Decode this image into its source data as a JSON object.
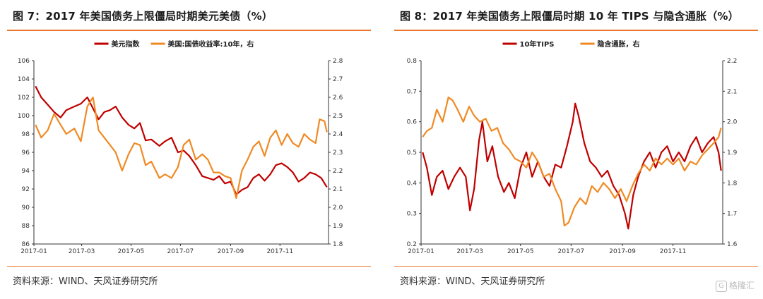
{
  "colors": {
    "dark_red": "#C00000",
    "orange": "#F08A24",
    "accent": "#E9782E"
  },
  "watermark": {
    "icon": "gelonghui-logo-icon",
    "text": "格隆汇"
  },
  "panels": [
    {
      "title": "图 7：2017 年美国债务上限僵局时期美元美债（%）",
      "source": "资料来源：WIND、天风证券研究所"
    },
    {
      "title": "图 8：2017 年美国债务上限僵局时期 10 年 TIPS 与隐含通胀（%）",
      "source": "资料来源：WIND、天风证券研究所"
    }
  ],
  "chart_data": [
    {
      "type": "line",
      "title": "",
      "x_ticks": [
        "2017-01",
        "2017-03",
        "2017-05",
        "2017-07",
        "2017-09",
        "2017-11"
      ],
      "x_range": [
        "2017-01-01",
        "2017-12-31"
      ],
      "y_left": {
        "range": [
          86,
          106
        ],
        "ticks": [
          86,
          88,
          90,
          92,
          94,
          96,
          98,
          100,
          102,
          104,
          106
        ]
      },
      "y_right": {
        "range": [
          1.8,
          2.8
        ],
        "ticks": [
          1.8,
          1.9,
          2.0,
          2.1,
          2.2,
          2.3,
          2.4,
          2.5,
          2.6,
          2.7,
          2.8
        ]
      },
      "legend_position": "top",
      "series": [
        {
          "name": "美元指数",
          "axis": "left",
          "color": "#C00000",
          "points": [
            [
              "2017-01-03",
              103.2
            ],
            [
              "2017-01-10",
              102.0
            ],
            [
              "2017-01-18",
              101.2
            ],
            [
              "2017-01-26",
              100.4
            ],
            [
              "2017-02-03",
              99.8
            ],
            [
              "2017-02-10",
              100.6
            ],
            [
              "2017-02-20",
              101.0
            ],
            [
              "2017-02-28",
              101.3
            ],
            [
              "2017-03-08",
              102.0
            ],
            [
              "2017-03-15",
              100.8
            ],
            [
              "2017-03-22",
              99.6
            ],
            [
              "2017-03-29",
              100.4
            ],
            [
              "2017-04-05",
              100.6
            ],
            [
              "2017-04-12",
              101.0
            ],
            [
              "2017-04-20",
              99.8
            ],
            [
              "2017-04-28",
              99.0
            ],
            [
              "2017-05-05",
              98.6
            ],
            [
              "2017-05-12",
              99.2
            ],
            [
              "2017-05-19",
              97.3
            ],
            [
              "2017-05-26",
              97.4
            ],
            [
              "2017-06-05",
              96.7
            ],
            [
              "2017-06-12",
              97.2
            ],
            [
              "2017-06-20",
              97.6
            ],
            [
              "2017-06-28",
              96.0
            ],
            [
              "2017-07-05",
              96.2
            ],
            [
              "2017-07-12",
              95.6
            ],
            [
              "2017-07-20",
              94.6
            ],
            [
              "2017-07-28",
              93.4
            ],
            [
              "2017-08-04",
              93.2
            ],
            [
              "2017-08-11",
              93.0
            ],
            [
              "2017-08-18",
              93.4
            ],
            [
              "2017-08-25",
              92.6
            ],
            [
              "2017-09-01",
              92.8
            ],
            [
              "2017-09-08",
              91.4
            ],
            [
              "2017-09-15",
              91.9
            ],
            [
              "2017-09-22",
              92.2
            ],
            [
              "2017-09-29",
              93.2
            ],
            [
              "2017-10-06",
              93.6
            ],
            [
              "2017-10-13",
              92.9
            ],
            [
              "2017-10-20",
              93.6
            ],
            [
              "2017-10-27",
              94.6
            ],
            [
              "2017-11-03",
              94.8
            ],
            [
              "2017-11-10",
              94.4
            ],
            [
              "2017-11-17",
              93.8
            ],
            [
              "2017-11-24",
              92.8
            ],
            [
              "2017-12-01",
              93.2
            ],
            [
              "2017-12-08",
              93.8
            ],
            [
              "2017-12-15",
              93.6
            ],
            [
              "2017-12-22",
              93.2
            ],
            [
              "2017-12-29",
              92.2
            ]
          ]
        },
        {
          "name": "美国:国债收益率:10年，右",
          "axis": "right",
          "color": "#F08A24",
          "points": [
            [
              "2017-01-03",
              2.45
            ],
            [
              "2017-01-10",
              2.38
            ],
            [
              "2017-01-18",
              2.42
            ],
            [
              "2017-01-26",
              2.51
            ],
            [
              "2017-02-03",
              2.45
            ],
            [
              "2017-02-10",
              2.4
            ],
            [
              "2017-02-20",
              2.43
            ],
            [
              "2017-02-28",
              2.36
            ],
            [
              "2017-03-08",
              2.55
            ],
            [
              "2017-03-15",
              2.6
            ],
            [
              "2017-03-22",
              2.42
            ],
            [
              "2017-03-29",
              2.38
            ],
            [
              "2017-04-05",
              2.34
            ],
            [
              "2017-04-12",
              2.3
            ],
            [
              "2017-04-20",
              2.2
            ],
            [
              "2017-04-28",
              2.29
            ],
            [
              "2017-05-05",
              2.35
            ],
            [
              "2017-05-12",
              2.34
            ],
            [
              "2017-05-19",
              2.23
            ],
            [
              "2017-05-26",
              2.25
            ],
            [
              "2017-06-05",
              2.16
            ],
            [
              "2017-06-12",
              2.18
            ],
            [
              "2017-06-20",
              2.16
            ],
            [
              "2017-06-28",
              2.22
            ],
            [
              "2017-07-05",
              2.34
            ],
            [
              "2017-07-12",
              2.37
            ],
            [
              "2017-07-20",
              2.26
            ],
            [
              "2017-07-28",
              2.29
            ],
            [
              "2017-08-04",
              2.26
            ],
            [
              "2017-08-11",
              2.19
            ],
            [
              "2017-08-18",
              2.19
            ],
            [
              "2017-08-25",
              2.17
            ],
            [
              "2017-09-01",
              2.16
            ],
            [
              "2017-09-08",
              2.05
            ],
            [
              "2017-09-15",
              2.2
            ],
            [
              "2017-09-22",
              2.26
            ],
            [
              "2017-09-29",
              2.33
            ],
            [
              "2017-10-06",
              2.36
            ],
            [
              "2017-10-13",
              2.28
            ],
            [
              "2017-10-20",
              2.38
            ],
            [
              "2017-10-27",
              2.42
            ],
            [
              "2017-11-03",
              2.34
            ],
            [
              "2017-11-10",
              2.4
            ],
            [
              "2017-11-17",
              2.35
            ],
            [
              "2017-11-24",
              2.33
            ],
            [
              "2017-12-01",
              2.4
            ],
            [
              "2017-12-08",
              2.37
            ],
            [
              "2017-12-15",
              2.35
            ],
            [
              "2017-12-20",
              2.48
            ],
            [
              "2017-12-26",
              2.47
            ],
            [
              "2017-12-29",
              2.41
            ]
          ]
        }
      ]
    },
    {
      "type": "line",
      "title": "",
      "x_ticks": [
        "2017-01",
        "2017-03",
        "2017-05",
        "2017-07",
        "2017-09",
        "2017-11"
      ],
      "x_range": [
        "2017-01-01",
        "2017-12-31"
      ],
      "y_left": {
        "range": [
          0.2,
          0.8
        ],
        "ticks": [
          0.2,
          0.3,
          0.4,
          0.5,
          0.6,
          0.7,
          0.8
        ]
      },
      "y_right": {
        "range": [
          1.6,
          2.2
        ],
        "ticks": [
          1.6,
          1.7,
          1.8,
          1.9,
          2.0,
          2.1,
          2.2
        ]
      },
      "legend_position": "top",
      "series": [
        {
          "name": "10年TIPS",
          "axis": "left",
          "color": "#C00000",
          "points": [
            [
              "2017-01-03",
              0.5
            ],
            [
              "2017-01-08",
              0.45
            ],
            [
              "2017-01-14",
              0.36
            ],
            [
              "2017-01-20",
              0.42
            ],
            [
              "2017-01-27",
              0.44
            ],
            [
              "2017-02-03",
              0.38
            ],
            [
              "2017-02-10",
              0.42
            ],
            [
              "2017-02-17",
              0.45
            ],
            [
              "2017-02-24",
              0.42
            ],
            [
              "2017-03-01",
              0.31
            ],
            [
              "2017-03-06",
              0.38
            ],
            [
              "2017-03-12",
              0.54
            ],
            [
              "2017-03-16",
              0.6
            ],
            [
              "2017-03-22",
              0.47
            ],
            [
              "2017-03-28",
              0.52
            ],
            [
              "2017-04-04",
              0.42
            ],
            [
              "2017-04-11",
              0.37
            ],
            [
              "2017-04-17",
              0.4
            ],
            [
              "2017-04-24",
              0.35
            ],
            [
              "2017-05-01",
              0.45
            ],
            [
              "2017-05-08",
              0.5
            ],
            [
              "2017-05-15",
              0.42
            ],
            [
              "2017-05-22",
              0.47
            ],
            [
              "2017-05-29",
              0.42
            ],
            [
              "2017-06-05",
              0.39
            ],
            [
              "2017-06-12",
              0.46
            ],
            [
              "2017-06-19",
              0.45
            ],
            [
              "2017-06-26",
              0.52
            ],
            [
              "2017-07-03",
              0.6
            ],
            [
              "2017-07-06",
              0.66
            ],
            [
              "2017-07-10",
              0.62
            ],
            [
              "2017-07-17",
              0.53
            ],
            [
              "2017-07-24",
              0.47
            ],
            [
              "2017-07-31",
              0.45
            ],
            [
              "2017-08-07",
              0.42
            ],
            [
              "2017-08-14",
              0.44
            ],
            [
              "2017-08-21",
              0.39
            ],
            [
              "2017-08-28",
              0.36
            ],
            [
              "2017-09-04",
              0.3
            ],
            [
              "2017-09-08",
              0.25
            ],
            [
              "2017-09-14",
              0.36
            ],
            [
              "2017-09-20",
              0.42
            ],
            [
              "2017-09-27",
              0.47
            ],
            [
              "2017-10-04",
              0.5
            ],
            [
              "2017-10-11",
              0.45
            ],
            [
              "2017-10-18",
              0.5
            ],
            [
              "2017-10-25",
              0.52
            ],
            [
              "2017-11-01",
              0.47
            ],
            [
              "2017-11-08",
              0.5
            ],
            [
              "2017-11-15",
              0.47
            ],
            [
              "2017-11-22",
              0.52
            ],
            [
              "2017-11-29",
              0.55
            ],
            [
              "2017-12-06",
              0.5
            ],
            [
              "2017-12-13",
              0.53
            ],
            [
              "2017-12-20",
              0.55
            ],
            [
              "2017-12-26",
              0.5
            ],
            [
              "2017-12-29",
              0.44
            ]
          ]
        },
        {
          "name": "隐含通胀，右",
          "axis": "right",
          "color": "#F08A24",
          "points": [
            [
              "2017-01-03",
              1.95
            ],
            [
              "2017-01-08",
              1.97
            ],
            [
              "2017-01-14",
              1.98
            ],
            [
              "2017-01-20",
              2.04
            ],
            [
              "2017-01-27",
              2.0
            ],
            [
              "2017-02-03",
              2.08
            ],
            [
              "2017-02-08",
              2.07
            ],
            [
              "2017-02-14",
              2.04
            ],
            [
              "2017-02-21",
              2.0
            ],
            [
              "2017-02-28",
              2.05
            ],
            [
              "2017-03-06",
              2.02
            ],
            [
              "2017-03-13",
              2.0
            ],
            [
              "2017-03-20",
              2.01
            ],
            [
              "2017-03-27",
              1.97
            ],
            [
              "2017-04-03",
              1.98
            ],
            [
              "2017-04-10",
              1.93
            ],
            [
              "2017-04-17",
              1.91
            ],
            [
              "2017-04-24",
              1.88
            ],
            [
              "2017-05-01",
              1.87
            ],
            [
              "2017-05-08",
              1.85
            ],
            [
              "2017-05-15",
              1.9
            ],
            [
              "2017-05-22",
              1.87
            ],
            [
              "2017-05-29",
              1.82
            ],
            [
              "2017-06-05",
              1.83
            ],
            [
              "2017-06-12",
              1.78
            ],
            [
              "2017-06-19",
              1.74
            ],
            [
              "2017-06-23",
              1.66
            ],
            [
              "2017-06-28",
              1.67
            ],
            [
              "2017-07-05",
              1.72
            ],
            [
              "2017-07-12",
              1.75
            ],
            [
              "2017-07-19",
              1.73
            ],
            [
              "2017-07-26",
              1.79
            ],
            [
              "2017-08-02",
              1.77
            ],
            [
              "2017-08-09",
              1.8
            ],
            [
              "2017-08-16",
              1.78
            ],
            [
              "2017-08-23",
              1.75
            ],
            [
              "2017-08-30",
              1.78
            ],
            [
              "2017-09-06",
              1.74
            ],
            [
              "2017-09-13",
              1.79
            ],
            [
              "2017-09-20",
              1.83
            ],
            [
              "2017-09-27",
              1.86
            ],
            [
              "2017-10-04",
              1.84
            ],
            [
              "2017-10-11",
              1.88
            ],
            [
              "2017-10-18",
              1.86
            ],
            [
              "2017-10-25",
              1.88
            ],
            [
              "2017-11-01",
              1.86
            ],
            [
              "2017-11-08",
              1.88
            ],
            [
              "2017-11-15",
              1.84
            ],
            [
              "2017-11-22",
              1.87
            ],
            [
              "2017-11-29",
              1.86
            ],
            [
              "2017-12-06",
              1.89
            ],
            [
              "2017-12-13",
              1.91
            ],
            [
              "2017-12-20",
              1.93
            ],
            [
              "2017-12-26",
              1.95
            ],
            [
              "2017-12-29",
              1.98
            ]
          ]
        }
      ]
    }
  ]
}
